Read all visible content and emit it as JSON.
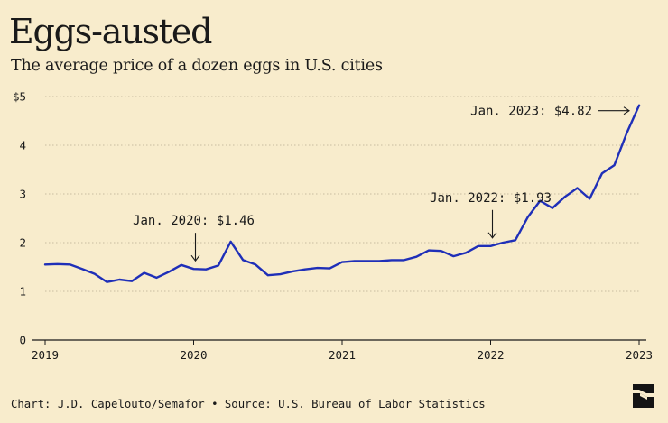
{
  "title": "Eggs-austed",
  "subtitle": "The average price of a dozen eggs in U.S. cities",
  "footer": "Chart: J.D. Capelouto/Semafor • Source: U.S. Bureau of Labor Statistics",
  "logo_icon": "semafor-logo-icon",
  "colors": {
    "background": "#f8eccc",
    "line": "#1f2fb8",
    "text": "#1a1a1a",
    "grid": "#c9bd9f"
  },
  "chart_data": {
    "type": "line",
    "title": "Eggs-austed",
    "subtitle": "The average price of a dozen eggs in U.S. cities",
    "xlabel": "",
    "ylabel": "",
    "xlim": [
      2019.0,
      2023.0
    ],
    "ylim": [
      0,
      5
    ],
    "grid": true,
    "x_ticks": [
      2019,
      2020,
      2021,
      2022,
      2023
    ],
    "y_ticks": [
      {
        "value": 0,
        "label": "0"
      },
      {
        "value": 1,
        "label": "1"
      },
      {
        "value": 2,
        "label": "2"
      },
      {
        "value": 3,
        "label": "3"
      },
      {
        "value": 4,
        "label": "4"
      },
      {
        "value": 5,
        "label": "$5"
      }
    ],
    "series": [
      {
        "x": [
          "2019-01",
          "2019-02",
          "2019-03",
          "2019-04",
          "2019-05",
          "2019-06",
          "2019-07",
          "2019-08",
          "2019-09",
          "2019-10",
          "2019-11",
          "2019-12",
          "2020-01",
          "2020-02",
          "2020-03",
          "2020-04",
          "2020-05",
          "2020-06",
          "2020-07",
          "2020-08",
          "2020-09",
          "2020-10",
          "2020-11",
          "2020-12",
          "2021-01",
          "2021-02",
          "2021-03",
          "2021-04",
          "2021-05",
          "2021-06",
          "2021-07",
          "2021-08",
          "2021-09",
          "2021-10",
          "2021-11",
          "2021-12",
          "2022-01",
          "2022-02",
          "2022-03",
          "2022-04",
          "2022-05",
          "2022-06",
          "2022-07",
          "2022-08",
          "2022-09",
          "2022-10",
          "2022-11",
          "2022-12",
          "2023-01"
        ],
        "values": [
          1.55,
          1.56,
          1.55,
          1.46,
          1.36,
          1.19,
          1.24,
          1.21,
          1.38,
          1.28,
          1.4,
          1.54,
          1.46,
          1.45,
          1.53,
          2.02,
          1.64,
          1.55,
          1.33,
          1.35,
          1.41,
          1.45,
          1.48,
          1.47,
          1.6,
          1.62,
          1.62,
          1.62,
          1.64,
          1.64,
          1.71,
          1.84,
          1.83,
          1.72,
          1.79,
          1.93,
          1.93,
          2.0,
          2.05,
          2.52,
          2.86,
          2.71,
          2.94,
          3.12,
          2.9,
          3.42,
          3.59,
          4.25,
          4.82
        ]
      }
    ],
    "annotations": [
      {
        "text": "Jan. 2020: $1.46",
        "x": "2020-01",
        "y": 1.46,
        "arrow": "down"
      },
      {
        "text": "Jan. 2022: $1.93",
        "x": "2022-01",
        "y": 1.93,
        "arrow": "down"
      },
      {
        "text": "Jan. 2023: $4.82",
        "x": "2023-01",
        "y": 4.82,
        "arrow": "right"
      }
    ]
  }
}
